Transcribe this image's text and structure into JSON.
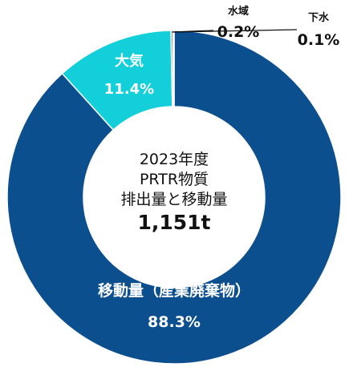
{
  "chart_data": {
    "type": "pie",
    "style": "donut",
    "center_title_lines": [
      "2023年度",
      "PRTR物質",
      "排出量と移動量"
    ],
    "center_total": "1,151t",
    "slices": [
      {
        "name": "移動量（産業廃棄物）",
        "value": 88.3,
        "label": "88.3%",
        "color": "#0c4f8f",
        "label_color": "#ffffff"
      },
      {
        "name": "大気",
        "value": 11.4,
        "label": "11.4%",
        "color": "#12cfd9",
        "label_color": "#ffffff"
      },
      {
        "name": "水域",
        "value": 0.2,
        "label": "0.2%",
        "color": "#8a9aab",
        "label_color": "#111111"
      },
      {
        "name": "下水",
        "value": 0.1,
        "label": "0.1%",
        "color": "#5a6470",
        "label_color": "#111111"
      }
    ]
  }
}
